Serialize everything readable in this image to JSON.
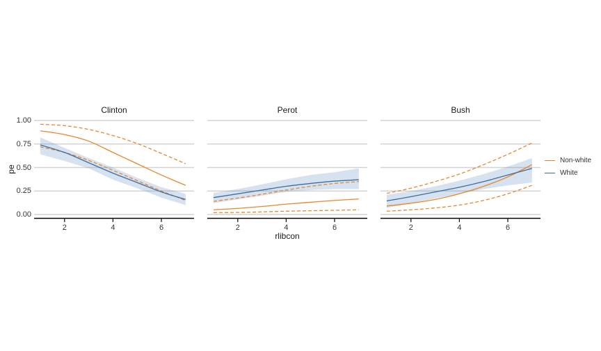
{
  "figure": {
    "background": "#ffffff",
    "grid_color": "#d4d4d4",
    "axis_color": "#000000",
    "text_color": "#333333"
  },
  "y_axis": {
    "label": "pe",
    "tick_labels": [
      "1.00",
      "0.75",
      "0.50",
      "0.25",
      "0.00"
    ],
    "tick_values": [
      1.0,
      0.75,
      0.5,
      0.25,
      0.0
    ]
  },
  "x_axis": {
    "label": "rlibcon",
    "tick_labels": [
      "2",
      "4",
      "6"
    ],
    "tick_values": [
      2,
      4,
      6
    ],
    "range": [
      1,
      7
    ]
  },
  "legend": {
    "items": [
      {
        "label": "Non-white",
        "color": "#e8862c",
        "style": "solid"
      },
      {
        "label": "White",
        "color": "#3e6d9c",
        "style": "solid"
      }
    ]
  },
  "chart_data": {
    "type": "line",
    "title": "",
    "xlabel": "rlibcon",
    "ylabel": "pe",
    "x": [
      1,
      2,
      3,
      4,
      5,
      6,
      7
    ],
    "ylim": [
      0,
      1
    ],
    "xlim": [
      1,
      7
    ],
    "grid": "horizontal",
    "legend_position": "right",
    "colors": {
      "Non-white": "#e8862c",
      "White": "#3e6d9c",
      "band_fill": "rgba(104,149,197,0.27)"
    },
    "facets": [
      {
        "title": "Clinton",
        "series": [
          {
            "name": "White CI band",
            "group": "White",
            "kind": "band",
            "upper": [
              0.82,
              0.71,
              0.6,
              0.5,
              0.39,
              0.29,
              0.22
            ],
            "lower": [
              0.64,
              0.57,
              0.49,
              0.37,
              0.28,
              0.18,
              0.1
            ]
          },
          {
            "name": "Non-white CI upper",
            "group": "Non-white",
            "kind": "line",
            "dash": true,
            "values": [
              0.96,
              0.945,
              0.905,
              0.84,
              0.755,
              0.65,
              0.54
            ]
          },
          {
            "name": "Non-white CI lower",
            "group": "Non-white",
            "kind": "line",
            "dash": true,
            "values": [
              0.72,
              0.66,
              0.575,
              0.47,
              0.36,
              0.25,
              0.15
            ]
          },
          {
            "name": "Non-white",
            "group": "Non-white",
            "kind": "line",
            "dash": false,
            "values": [
              0.89,
              0.85,
              0.78,
              0.66,
              0.54,
              0.42,
              0.31
            ]
          },
          {
            "name": "White",
            "group": "White",
            "kind": "line",
            "dash": false,
            "values": [
              0.74,
              0.66,
              0.55,
              0.44,
              0.34,
              0.24,
              0.16
            ]
          }
        ]
      },
      {
        "title": "Perot",
        "series": [
          {
            "name": "White CI band",
            "group": "White",
            "kind": "band",
            "upper": [
              0.23,
              0.27,
              0.32,
              0.375,
              0.42,
              0.45,
              0.49
            ],
            "lower": [
              0.12,
              0.16,
              0.2,
              0.24,
              0.26,
              0.27,
              0.27
            ]
          },
          {
            "name": "Non-white CI upper",
            "group": "Non-white",
            "kind": "line",
            "dash": true,
            "values": [
              0.14,
              0.175,
              0.215,
              0.26,
              0.3,
              0.33,
              0.35
            ]
          },
          {
            "name": "Non-white CI lower",
            "group": "Non-white",
            "kind": "line",
            "dash": true,
            "values": [
              0.02,
              0.022,
              0.028,
              0.035,
              0.04,
              0.045,
              0.05
            ]
          },
          {
            "name": "Non-white",
            "group": "Non-white",
            "kind": "line",
            "dash": false,
            "values": [
              0.05,
              0.065,
              0.085,
              0.11,
              0.13,
              0.15,
              0.165
            ]
          },
          {
            "name": "White",
            "group": "White",
            "kind": "line",
            "dash": false,
            "values": [
              0.18,
              0.22,
              0.26,
              0.3,
              0.33,
              0.355,
              0.37
            ]
          }
        ]
      },
      {
        "title": "Bush",
        "series": [
          {
            "name": "White CI band",
            "group": "White",
            "kind": "band",
            "upper": [
              0.21,
              0.25,
              0.3,
              0.36,
              0.43,
              0.51,
              0.6
            ],
            "lower": [
              0.07,
              0.12,
              0.17,
              0.22,
              0.27,
              0.31,
              0.34
            ]
          },
          {
            "name": "Non-white CI upper",
            "group": "Non-white",
            "kind": "line",
            "dash": true,
            "values": [
              0.225,
              0.28,
              0.35,
              0.43,
              0.53,
              0.64,
              0.76
            ]
          },
          {
            "name": "Non-white CI lower",
            "group": "Non-white",
            "kind": "line",
            "dash": true,
            "values": [
              0.035,
              0.05,
              0.07,
              0.1,
              0.15,
              0.22,
              0.31
            ]
          },
          {
            "name": "Non-white",
            "group": "Non-white",
            "kind": "line",
            "dash": false,
            "values": [
              0.09,
              0.12,
              0.16,
              0.22,
              0.3,
              0.4,
              0.53
            ]
          },
          {
            "name": "White",
            "group": "White",
            "kind": "line",
            "dash": false,
            "values": [
              0.145,
              0.19,
              0.24,
              0.29,
              0.35,
              0.42,
              0.49
            ]
          }
        ]
      }
    ]
  }
}
